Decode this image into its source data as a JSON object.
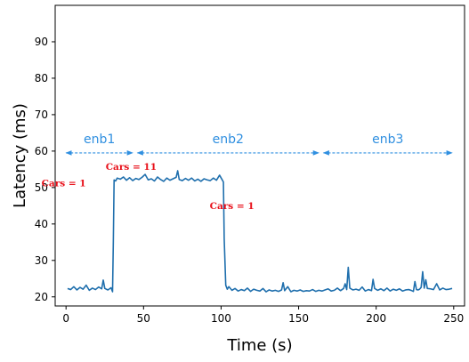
{
  "chart_data": {
    "type": "line",
    "xlabel": "Time (s)",
    "ylabel": "Latency (ms)",
    "xlim": [
      -7,
      257
    ],
    "ylim": [
      17.5,
      100
    ],
    "xticks": [
      0,
      50,
      100,
      150,
      200,
      250
    ],
    "yticks": [
      20,
      30,
      40,
      50,
      60,
      70,
      80,
      90
    ],
    "grid": false,
    "line_color": "#1f6fad",
    "annotation_color": "#e8101a",
    "region_color": "#2f8fe0",
    "series": [
      {
        "x": [
          1,
          3,
          5,
          7,
          9,
          11,
          13,
          15,
          17,
          19,
          21,
          23,
          24,
          25,
          27,
          29,
          30,
          30.5,
          31,
          32,
          33,
          35,
          37,
          39,
          41,
          43,
          45,
          47,
          49,
          51,
          53,
          55,
          57,
          59,
          61,
          63,
          65,
          67,
          69,
          71,
          72,
          73,
          75,
          77,
          79,
          81,
          83,
          85,
          87,
          89,
          91,
          93,
          95,
          97,
          99,
          101,
          101.5,
          102,
          103,
          104,
          105,
          107,
          109,
          111,
          113,
          115,
          117,
          119,
          121,
          123,
          125,
          127,
          129,
          131,
          133,
          135,
          137,
          139,
          140,
          141,
          143,
          145,
          147,
          149,
          151,
          153,
          155,
          157,
          159,
          161,
          163,
          165,
          167,
          169,
          171,
          173,
          175,
          177,
          179,
          180,
          181,
          182,
          183,
          185,
          187,
          189,
          191,
          193,
          195,
          197,
          198,
          199,
          201,
          203,
          205,
          207,
          209,
          211,
          213,
          215,
          217,
          219,
          221,
          223,
          224,
          225,
          226,
          227,
          228,
          229,
          230,
          231,
          232,
          233,
          235,
          237,
          239,
          241,
          243,
          245,
          247,
          249
        ],
        "values": [
          22.3,
          22.0,
          22.8,
          21.9,
          22.6,
          22.1,
          23.2,
          21.8,
          22.4,
          22.0,
          22.7,
          22.2,
          24.6,
          22.3,
          21.9,
          22.5,
          21.4,
          35.0,
          52.1,
          51.8,
          52.6,
          52.3,
          52.9,
          52.0,
          52.7,
          51.9,
          52.5,
          52.2,
          52.8,
          53.6,
          52.1,
          52.4,
          51.8,
          52.9,
          52.2,
          51.7,
          52.6,
          52.0,
          52.4,
          52.8,
          54.6,
          52.2,
          51.9,
          52.5,
          52.0,
          52.6,
          51.8,
          52.3,
          51.7,
          52.4,
          52.1,
          51.9,
          52.6,
          52.0,
          53.4,
          51.9,
          51.5,
          36.0,
          23.2,
          22.1,
          22.8,
          21.8,
          22.3,
          21.6,
          22.0,
          21.7,
          22.4,
          21.5,
          22.1,
          21.8,
          21.6,
          22.3,
          21.4,
          21.9,
          21.6,
          21.8,
          21.5,
          21.9,
          23.9,
          21.7,
          22.8,
          21.4,
          21.8,
          21.6,
          21.9,
          21.5,
          21.7,
          21.6,
          22.0,
          21.5,
          21.8,
          21.6,
          21.9,
          22.2,
          21.6,
          21.8,
          22.4,
          21.7,
          22.3,
          23.6,
          22.0,
          28.1,
          22.4,
          21.9,
          22.1,
          21.8,
          22.7,
          21.6,
          22.0,
          21.7,
          24.8,
          22.3,
          21.8,
          22.2,
          21.7,
          22.4,
          21.6,
          22.1,
          21.8,
          22.2,
          21.6,
          21.9,
          22.0,
          21.7,
          21.5,
          24.2,
          22.0,
          21.9,
          22.1,
          22.6,
          26.9,
          22.4,
          24.7,
          22.3,
          22.2,
          22.0,
          23.6,
          21.9,
          22.4,
          22.0,
          22.1,
          22.3
        ]
      }
    ],
    "regions": [
      {
        "label": "enb1",
        "from": 0,
        "to": 43
      },
      {
        "label": "enb2",
        "from": 46,
        "to": 163
      },
      {
        "label": "enb3",
        "from": 166,
        "to": 249
      }
    ],
    "region_y": 59.5,
    "annotations": [
      {
        "text": "Cars = 1",
        "x": -1.5,
        "y": 50.3
      },
      {
        "text": "Cars = 11",
        "x": 42,
        "y": 54.9
      },
      {
        "text": "Cars = 1",
        "x": 107,
        "y": 44.1
      }
    ]
  }
}
